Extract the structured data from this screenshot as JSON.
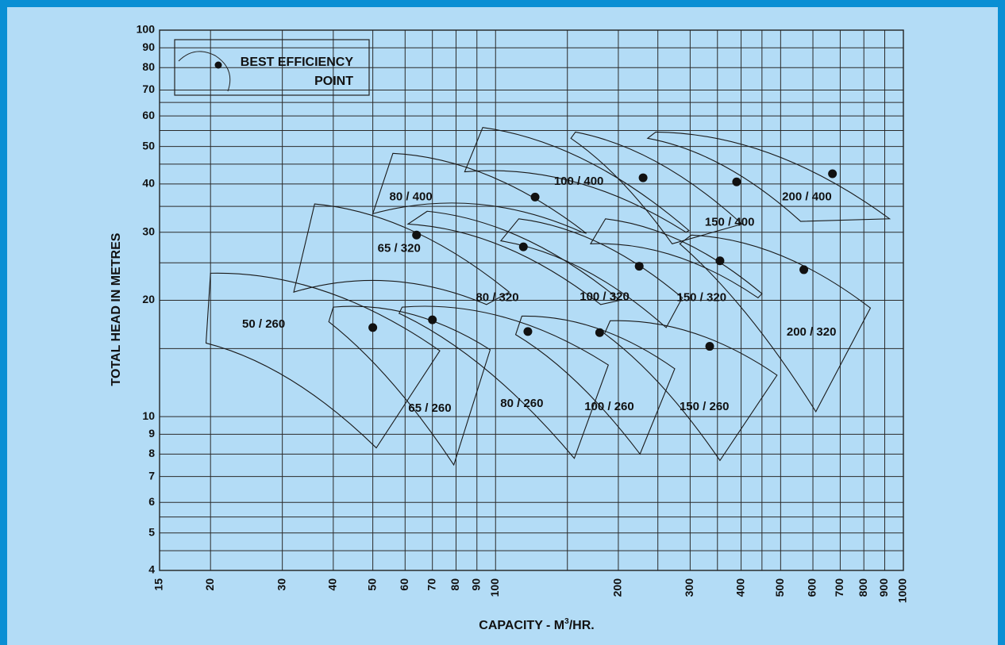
{
  "chart_data": {
    "type": "scatter",
    "title": "",
    "xlabel": "CAPACITY - M³/HR.",
    "xlabel_parts": {
      "main": "CAPACITY - M",
      "sup": "3",
      "end": "/HR."
    },
    "ylabel": "TOTAL HEAD IN METRES",
    "x_scale": "log",
    "y_scale": "log",
    "xlim": [
      15,
      1000
    ],
    "ylim": [
      4,
      100
    ],
    "x_ticks": [
      15,
      20,
      30,
      40,
      50,
      60,
      70,
      80,
      90,
      100,
      200,
      300,
      400,
      500,
      600,
      700,
      800,
      900,
      1000
    ],
    "y_ticks": [
      4,
      5,
      6,
      7,
      8,
      9,
      10,
      20,
      30,
      40,
      50,
      60,
      70,
      80,
      90,
      100
    ],
    "grid": true,
    "legend": {
      "position": "top-left",
      "label_line1": "BEST EFFICIENCY",
      "label_line2": "POINT"
    },
    "best_efficiency_points": [
      {
        "name": "50 / 260",
        "x": 50,
        "y": 17.0
      },
      {
        "name": "65 / 260",
        "x": 70,
        "y": 17.8
      },
      {
        "name": "80 / 260",
        "x": 120,
        "y": 16.6
      },
      {
        "name": "100 / 260",
        "x": 180,
        "y": 16.5
      },
      {
        "name": "150 / 260",
        "x": 335,
        "y": 15.2
      },
      {
        "name": "65 / 320",
        "x": 64,
        "y": 29.5
      },
      {
        "name": "80 / 320",
        "x": 117,
        "y": 27.5
      },
      {
        "name": "100 / 320",
        "x": 225,
        "y": 24.5
      },
      {
        "name": "150 / 320",
        "x": 355,
        "y": 25.3
      },
      {
        "name": "200 / 320",
        "x": 570,
        "y": 24.0
      },
      {
        "name": "80 / 400",
        "x": 125,
        "y": 37.0
      },
      {
        "name": "100 / 400",
        "x": 230,
        "y": 41.5
      },
      {
        "name": "150 / 400",
        "x": 390,
        "y": 40.5
      },
      {
        "name": "200 / 400",
        "x": 670,
        "y": 42.5
      }
    ],
    "series_labels": [
      {
        "text": "50 / 260",
        "x": 27,
        "y": 17.3
      },
      {
        "text": "65 / 260",
        "x": 69,
        "y": 10.5
      },
      {
        "text": "80 / 260",
        "x": 116,
        "y": 10.8
      },
      {
        "text": "100 / 260",
        "x": 190,
        "y": 10.6
      },
      {
        "text": "150 / 260",
        "x": 325,
        "y": 10.6
      },
      {
        "text": "65 / 320",
        "x": 58,
        "y": 27.2
      },
      {
        "text": "80 / 320",
        "x": 101,
        "y": 20.3
      },
      {
        "text": "100 / 320",
        "x": 185,
        "y": 20.4
      },
      {
        "text": "150 / 320",
        "x": 320,
        "y": 20.3
      },
      {
        "text": "200 / 320",
        "x": 595,
        "y": 16.5
      },
      {
        "text": "80 / 400",
        "x": 62,
        "y": 37.0
      },
      {
        "text": "100 / 400",
        "x": 160,
        "y": 40.5
      },
      {
        "text": "150 / 400",
        "x": 375,
        "y": 31.8
      },
      {
        "text": "200 / 400",
        "x": 580,
        "y": 37.0
      }
    ],
    "envelopes": [
      {
        "name": "50 / 260",
        "corners": [
          [
            20,
            23.5
          ],
          [
            19.5,
            15.5
          ],
          [
            51,
            8.3
          ],
          [
            73,
            14.8
          ]
        ]
      },
      {
        "name": "65 / 260",
        "corners": [
          [
            40,
            19.2
          ],
          [
            39,
            17.6
          ],
          [
            79,
            7.5
          ],
          [
            97,
            14.9
          ]
        ]
      },
      {
        "name": "80 / 260",
        "corners": [
          [
            59,
            19.2
          ],
          [
            58,
            18.5
          ],
          [
            156,
            7.8
          ],
          [
            189,
            13.6
          ]
        ]
      },
      {
        "name": "100 / 260",
        "corners": [
          [
            116,
            18.2
          ],
          [
            112,
            16.3
          ],
          [
            226,
            8.0
          ],
          [
            275,
            13.3
          ]
        ]
      },
      {
        "name": "150 / 260",
        "corners": [
          [
            191,
            17.7
          ],
          [
            185,
            16.4
          ],
          [
            355,
            7.7
          ],
          [
            490,
            12.8
          ]
        ]
      },
      {
        "name": "65 / 320",
        "corners": [
          [
            36,
            35.5
          ],
          [
            32,
            21.0
          ],
          [
            95,
            19.5
          ],
          [
            108,
            21.0
          ]
        ]
      },
      {
        "name": "80 / 320",
        "corners": [
          [
            68,
            34.0
          ],
          [
            61,
            31.5
          ],
          [
            181,
            19.5
          ],
          [
            202,
            20.0
          ]
        ]
      },
      {
        "name": "100 / 320",
        "corners": [
          [
            114,
            32.5
          ],
          [
            103,
            28.5
          ],
          [
            262,
            17.0
          ],
          [
            287,
            20.3
          ]
        ]
      },
      {
        "name": "150 / 320",
        "corners": [
          [
            186,
            32.5
          ],
          [
            171,
            28.0
          ],
          [
            440,
            20.3
          ],
          [
            450,
            20.8
          ]
        ]
      },
      {
        "name": "200 / 320",
        "corners": [
          [
            302,
            29.5
          ],
          [
            283,
            28.0
          ],
          [
            610,
            10.3
          ],
          [
            830,
            19.1
          ]
        ]
      },
      {
        "name": "80 / 400",
        "corners": [
          [
            56,
            48.0
          ],
          [
            50,
            33.5
          ],
          [
            163,
            30.0
          ],
          [
            167,
            29.8
          ]
        ]
      },
      {
        "name": "100 / 400",
        "corners": [
          [
            93,
            56.0
          ],
          [
            84,
            43.0
          ],
          [
            293,
            30.0
          ],
          [
            298,
            30.3
          ]
        ]
      },
      {
        "name": "150 / 400",
        "corners": [
          [
            157,
            54.5
          ],
          [
            153,
            52.5
          ],
          [
            271,
            28.0
          ],
          [
            402,
            31.5
          ]
        ]
      },
      {
        "name": "200 / 400",
        "corners": [
          [
            247,
            54.5
          ],
          [
            236,
            52.5
          ],
          [
            560,
            32.0
          ],
          [
            925,
            32.5
          ]
        ]
      }
    ]
  }
}
